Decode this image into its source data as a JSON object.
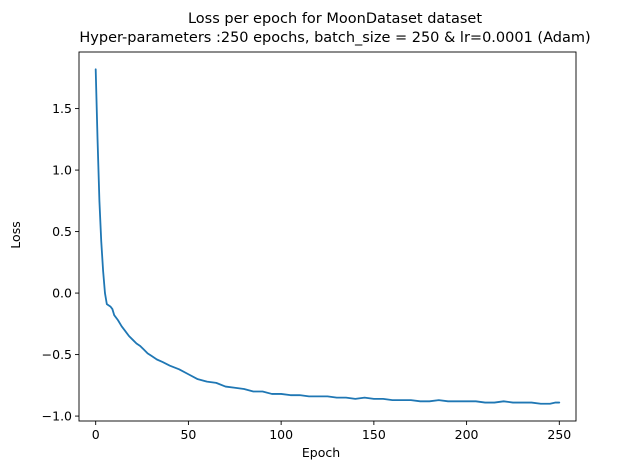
{
  "chart_data": {
    "type": "line",
    "title": "Loss per epoch for MoonDataset dataset",
    "subtitle": "Hyper-parameters :250 epochs, batch_size = 250 & lr=0.0001 (Adam)",
    "xlabel": "Epoch",
    "ylabel": "Loss",
    "xlim": [
      -9,
      259
    ],
    "ylim": [
      -1.04,
      1.96
    ],
    "xticks": [
      0,
      50,
      100,
      150,
      200,
      250
    ],
    "yticks": [
      -1.0,
      -0.5,
      0.0,
      0.5,
      1.0,
      1.5
    ],
    "xtick_labels": [
      "0",
      "50",
      "100",
      "150",
      "200",
      "250"
    ],
    "ytick_labels": [
      "−1.0",
      "−0.5",
      "0.0",
      "0.5",
      "1.0",
      "1.5"
    ],
    "grid": false,
    "line_color": "#1f77b4",
    "series": [
      {
        "x": [
          0,
          1,
          2,
          3,
          4,
          5,
          6,
          7,
          8,
          9,
          10,
          12,
          14,
          16,
          18,
          20,
          22,
          24,
          26,
          28,
          30,
          33,
          36,
          40,
          45,
          50,
          55,
          60,
          65,
          70,
          75,
          80,
          85,
          90,
          95,
          100,
          105,
          110,
          115,
          120,
          125,
          130,
          135,
          140,
          145,
          150,
          155,
          160,
          165,
          170,
          175,
          180,
          185,
          190,
          195,
          200,
          205,
          210,
          215,
          220,
          225,
          230,
          235,
          240,
          245,
          248,
          250
        ],
        "y": [
          1.82,
          1.25,
          0.75,
          0.42,
          0.18,
          0.0,
          -0.09,
          -0.1,
          -0.11,
          -0.13,
          -0.18,
          -0.22,
          -0.27,
          -0.31,
          -0.35,
          -0.38,
          -0.41,
          -0.43,
          -0.46,
          -0.49,
          -0.51,
          -0.54,
          -0.56,
          -0.59,
          -0.62,
          -0.66,
          -0.7,
          -0.72,
          -0.73,
          -0.76,
          -0.77,
          -0.78,
          -0.8,
          -0.8,
          -0.82,
          -0.82,
          -0.83,
          -0.83,
          -0.84,
          -0.84,
          -0.84,
          -0.85,
          -0.85,
          -0.86,
          -0.85,
          -0.86,
          -0.86,
          -0.87,
          -0.87,
          -0.87,
          -0.88,
          -0.88,
          -0.87,
          -0.88,
          -0.88,
          -0.88,
          -0.88,
          -0.89,
          -0.89,
          -0.88,
          -0.89,
          -0.89,
          -0.89,
          -0.9,
          -0.9,
          -0.89,
          -0.89
        ]
      }
    ]
  }
}
